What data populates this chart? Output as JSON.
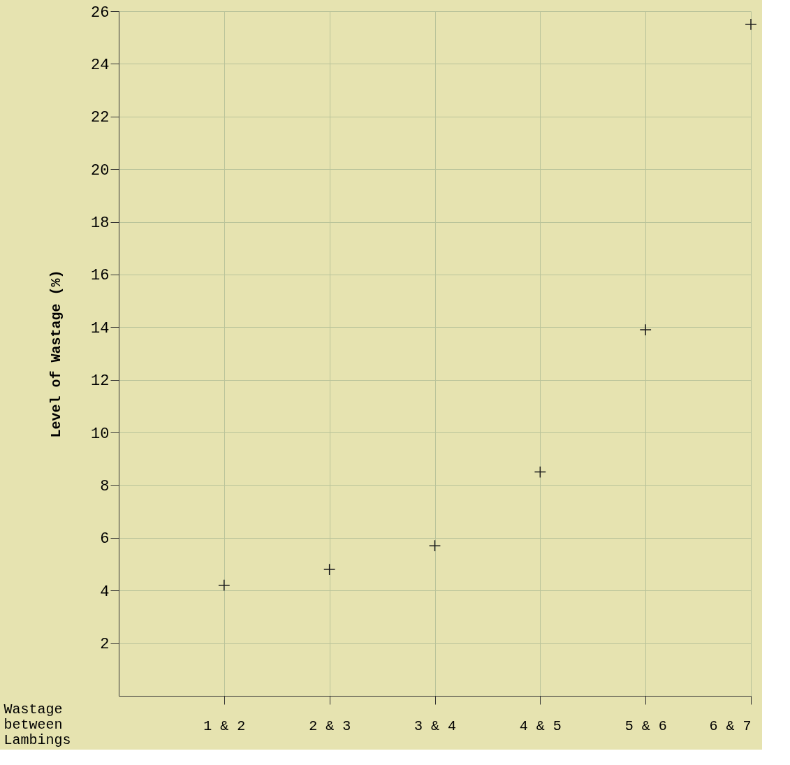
{
  "chart_data": {
    "type": "scatter",
    "xlabel": "Wastage\nbetween\nLambings",
    "ylabel": "Level of Wastage (%)",
    "categories": [
      null,
      "1 & 2",
      "2 & 3",
      "3 & 4",
      "4 & 5",
      "5 & 6",
      "6 & 7"
    ],
    "values": [
      null,
      4.2,
      4.8,
      5.7,
      8.5,
      13.9,
      25.5
    ],
    "color": "#1a1a1a",
    "marker": "cross",
    "grid": true,
    "ylim": [
      0,
      26
    ],
    "yticks": [
      2,
      4,
      6,
      8,
      10,
      12,
      14,
      16,
      18,
      20,
      22,
      24,
      26
    ]
  }
}
